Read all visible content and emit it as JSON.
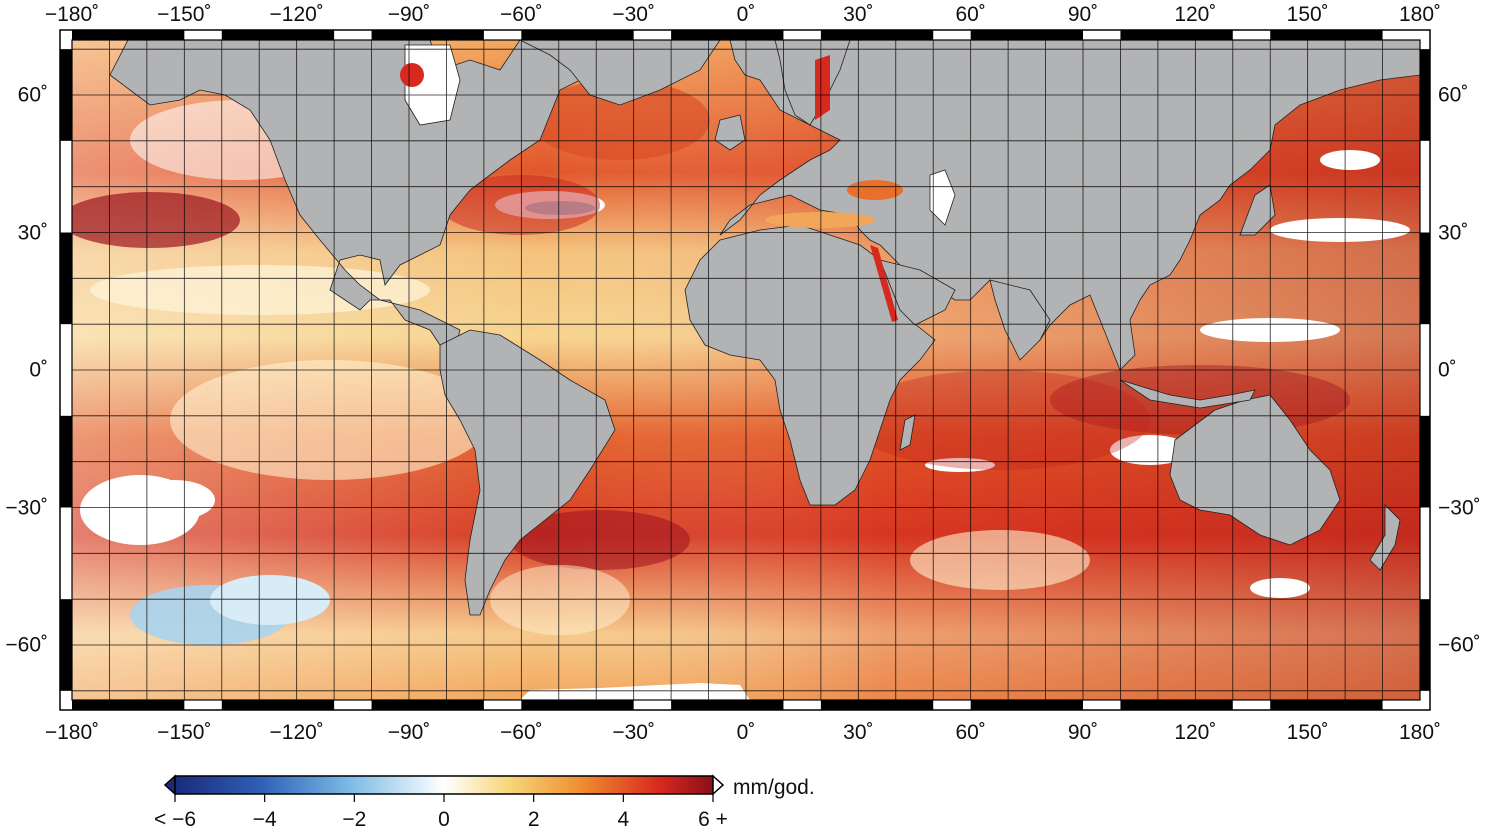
{
  "map": {
    "projection": "equirectangular",
    "lon_ticks": [
      "−180˚",
      "−150˚",
      "−120˚",
      "−90˚",
      "−60˚",
      "−30˚",
      "0˚",
      "30˚",
      "60˚",
      "90˚",
      "120˚",
      "150˚",
      "180˚"
    ],
    "lat_ticks": [
      "60˚",
      "30˚",
      "0˚",
      "−30˚",
      "−60˚"
    ],
    "lon_values": [
      -180,
      -150,
      -120,
      -90,
      -60,
      -30,
      0,
      30,
      60,
      90,
      120,
      150,
      180
    ],
    "lat_values": [
      60,
      30,
      0,
      -30,
      -60
    ],
    "lon_range": [
      -180,
      180
    ],
    "lat_range": [
      -72,
      72
    ],
    "land_color": "#b2b3b5",
    "grid_step_deg": 10,
    "grid": true
  },
  "colorbar": {
    "min": -6,
    "max": 6,
    "ticks": [
      "< −6",
      "−4",
      "−2",
      "0",
      "2",
      "4",
      "6 +"
    ],
    "tick_values": [
      -6,
      -4,
      -2,
      0,
      2,
      4,
      6
    ],
    "unit": "mm/god.",
    "colors": [
      "#1b2a7a",
      "#2f60b8",
      "#7fbde6",
      "#ffffff",
      "#f7d77a",
      "#ef8a2e",
      "#d8291e",
      "#8a0f1a"
    ]
  }
}
